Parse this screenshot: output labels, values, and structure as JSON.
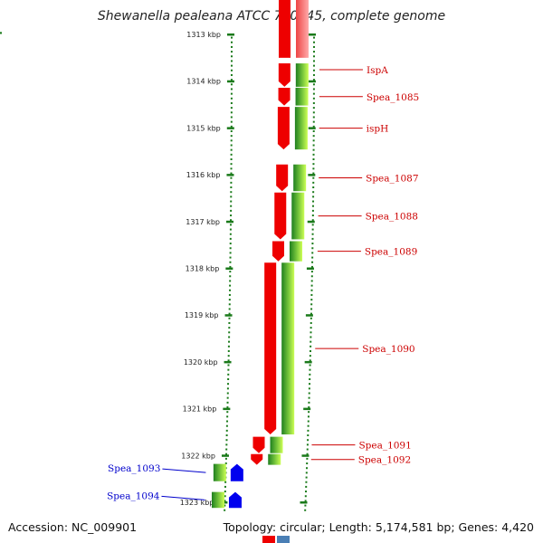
{
  "title": "Shewanella pealeana ATCC 700345, complete genome",
  "accession_text": "Accession: NC_009901",
  "topology_text": "Topology: circular; Length: 5,174,581 bp; Genes: 4,420",
  "colors": {
    "forward_gene": "#ee0000",
    "reverse_gene": "#0000ee",
    "label_forward": "#cc0000",
    "label_reverse": "#0000cc",
    "tick": "#1a7a1a",
    "backbone": "#808080"
  },
  "chart_data": {
    "type": "genome-map",
    "ruler": [
      {
        "kbp": 1313,
        "label": "1313 kbp"
      },
      {
        "kbp": 1314,
        "label": "1314 kbp"
      },
      {
        "kbp": 1315,
        "label": "1315 kbp"
      },
      {
        "kbp": 1316,
        "label": "1316 kbp"
      },
      {
        "kbp": 1317,
        "label": "1317 kbp"
      },
      {
        "kbp": 1318,
        "label": "1318 kbp"
      },
      {
        "kbp": 1319,
        "label": "1319 kbp"
      },
      {
        "kbp": 1320,
        "label": "1320 kbp"
      },
      {
        "kbp": 1321,
        "label": "1321 kbp"
      },
      {
        "kbp": 1322,
        "label": "1322 kbp"
      },
      {
        "kbp": 1323,
        "label": "1323 kbp"
      }
    ],
    "genes": [
      {
        "name": "IspA",
        "strand": "+",
        "start_kbp": 1313.62,
        "end_kbp": 1314.12
      },
      {
        "name": "Spea_1085",
        "strand": "+",
        "start_kbp": 1314.14,
        "end_kbp": 1314.52
      },
      {
        "name": "ispH",
        "strand": "+",
        "start_kbp": 1314.55,
        "end_kbp": 1315.46
      },
      {
        "name": "Spea_1087",
        "strand": "+",
        "start_kbp": 1315.78,
        "end_kbp": 1316.35
      },
      {
        "name": "Spea_1088",
        "strand": "+",
        "start_kbp": 1316.38,
        "end_kbp": 1317.38
      },
      {
        "name": "Spea_1089",
        "strand": "+",
        "start_kbp": 1317.42,
        "end_kbp": 1317.85
      },
      {
        "name": "Spea_1090",
        "strand": "+",
        "start_kbp": 1317.88,
        "end_kbp": 1321.55
      },
      {
        "name": "Spea_1091",
        "strand": "+",
        "start_kbp": 1321.6,
        "end_kbp": 1321.95
      },
      {
        "name": "Spea_1092",
        "strand": "+",
        "start_kbp": 1321.97,
        "end_kbp": 1322.2
      },
      {
        "name": "Spea_1093",
        "strand": "-",
        "start_kbp": 1322.18,
        "end_kbp": 1322.55
      },
      {
        "name": "Spea_1094",
        "strand": "-",
        "start_kbp": 1322.78,
        "end_kbp": 1323.12
      }
    ]
  }
}
